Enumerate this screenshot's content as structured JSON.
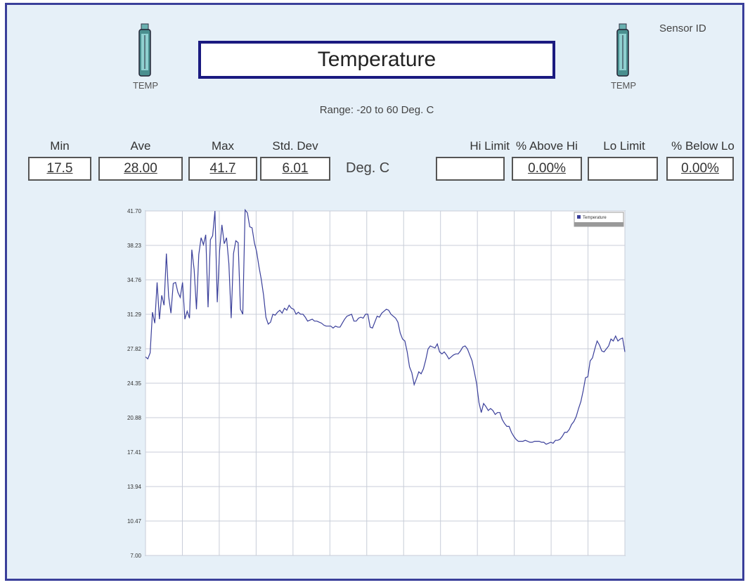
{
  "window": {
    "title": "Temperature",
    "range": "Range: -20 to 60 Deg. C",
    "sensor_id_label": "Sensor ID",
    "units": "Deg. C",
    "left_icon": {
      "name": "temperature-sensor-icon",
      "label": "TEMP"
    },
    "right_icon": {
      "name": "temperature-sensor-icon",
      "label": "TEMP"
    }
  },
  "stats": [
    {
      "label": "Min",
      "value": "17.5"
    },
    {
      "label": "Ave",
      "value": "28.00"
    },
    {
      "label": "Max",
      "value": "41.7"
    },
    {
      "label": "Std. Dev",
      "value": "6.01"
    }
  ],
  "limits": [
    {
      "label": "Hi Limit",
      "value": ""
    },
    {
      "label": "% Above Hi",
      "value": "0.00%"
    },
    {
      "label": "Lo Limit",
      "value": ""
    },
    {
      "label": "% Below Lo",
      "value": "0.00%"
    }
  ],
  "colors": {
    "frame_border": "#3a3f9a",
    "background": "#e6f0f8",
    "line": "#3a3f9a",
    "grid": "#c8cdd8",
    "title_border": "#1a1a80"
  },
  "chart_data": {
    "type": "line",
    "title": "",
    "xlabel": "",
    "ylabel": "",
    "ylim": [
      7.0,
      41.7
    ],
    "y_ticks": [
      "41.70",
      "38.23",
      "34.76",
      "31.29",
      "27.82",
      "24.35",
      "20.88",
      "17.41",
      "13.94",
      "10.47",
      "7.00"
    ],
    "x_ticks": [
      "",
      "",
      "",
      "",
      "",
      "",
      "",
      "",
      "",
      "",
      "",
      "",
      "",
      ""
    ],
    "legend": {
      "placement": "top-right",
      "entries": [
        "Temperature"
      ]
    },
    "grid": true,
    "series": [
      {
        "name": "Temperature",
        "values": [
          27.0,
          26.8,
          27.4,
          31.5,
          30.4,
          34.5,
          30.8,
          33.2,
          32.2,
          37.4,
          33.1,
          31.4,
          34.4,
          34.5,
          33.5,
          33.0,
          34.5,
          30.8,
          31.6,
          30.9,
          37.8,
          35.8,
          31.8,
          37.3,
          39.0,
          38.3,
          39.3,
          32.0,
          38.8,
          39.2,
          41.7,
          32.5,
          37.7,
          40.3,
          38.4,
          39.0,
          36.4,
          30.9,
          37.4,
          38.7,
          38.5,
          31.8,
          31.3,
          41.8,
          41.5,
          40.1,
          40.0,
          38.5,
          37.6,
          36.1,
          34.8,
          33.2,
          31.0,
          30.3,
          30.5,
          31.3,
          31.2,
          31.5,
          31.7,
          31.4,
          31.9,
          31.7,
          32.2,
          31.9,
          31.8,
          31.3,
          31.5,
          31.3,
          31.3,
          31.0,
          30.6,
          30.7,
          30.8,
          30.6,
          30.6,
          30.5,
          30.4,
          30.2,
          30.1,
          30.1,
          30.1,
          29.9,
          30.1,
          30.0,
          30.0,
          30.4,
          30.8,
          31.1,
          31.2,
          31.3,
          30.6,
          30.6,
          30.9,
          31.0,
          30.9,
          31.3,
          31.3,
          30.0,
          29.9,
          30.5,
          31.1,
          31.0,
          31.4,
          31.6,
          31.8,
          31.7,
          31.3,
          31.1,
          30.9,
          30.5,
          29.4,
          28.8,
          28.6,
          27.5,
          26.0,
          25.4,
          24.2,
          24.8,
          25.5,
          25.3,
          25.8,
          26.7,
          27.8,
          28.1,
          28.0,
          27.9,
          28.3,
          27.5,
          27.3,
          27.5,
          27.2,
          26.8,
          27.0,
          27.2,
          27.3,
          27.3,
          27.6,
          28.0,
          28.1,
          27.8,
          27.2,
          26.6,
          25.5,
          24.3,
          22.4,
          21.4,
          22.3,
          22.0,
          21.6,
          21.8,
          21.6,
          21.2,
          21.4,
          21.4,
          20.7,
          20.3,
          20.0,
          20.0,
          19.4,
          19.0,
          18.7,
          18.5,
          18.5,
          18.5,
          18.6,
          18.5,
          18.4,
          18.4,
          18.5,
          18.5,
          18.5,
          18.4,
          18.4,
          18.2,
          18.3,
          18.4,
          18.3,
          18.6,
          18.6,
          18.7,
          19.0,
          19.4,
          19.4,
          19.7,
          20.2,
          20.5,
          21.0,
          21.8,
          22.5,
          23.6,
          24.9,
          25.0,
          26.6,
          26.9,
          27.8,
          28.6,
          28.2,
          27.6,
          27.5,
          27.8,
          28.1,
          28.8,
          28.6,
          29.1,
          28.6,
          28.8,
          28.9,
          27.5
        ]
      }
    ]
  }
}
